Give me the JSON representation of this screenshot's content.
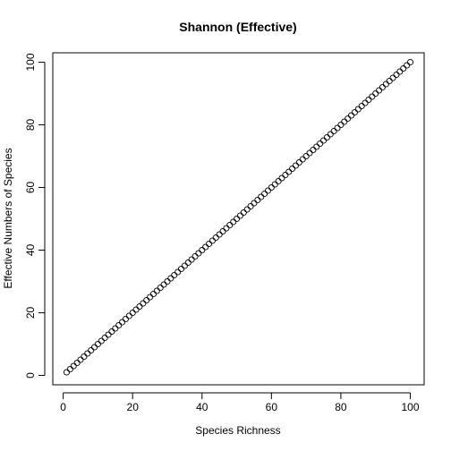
{
  "chart_data": {
    "type": "scatter",
    "title": "Shannon (Effective)",
    "xlabel": "Species Richness",
    "ylabel": "Effective Numbers of Species",
    "xlim": [
      -3,
      104
    ],
    "ylim": [
      -3,
      103
    ],
    "xticks": [
      0,
      20,
      40,
      60,
      80,
      100
    ],
    "yticks": [
      0,
      20,
      40,
      60,
      80,
      100
    ],
    "xtick_labels": [
      "0",
      "20",
      "40",
      "60",
      "80",
      "100"
    ],
    "ytick_labels": [
      "0",
      "20",
      "40",
      "60",
      "80",
      "100"
    ],
    "grid": false,
    "marker": "open-circle",
    "series": [
      {
        "name": "Shannon (Effective)",
        "x": [
          1,
          2,
          3,
          4,
          5,
          6,
          7,
          8,
          9,
          10,
          11,
          12,
          13,
          14,
          15,
          16,
          17,
          18,
          19,
          20,
          21,
          22,
          23,
          24,
          25,
          26,
          27,
          28,
          29,
          30,
          31,
          32,
          33,
          34,
          35,
          36,
          37,
          38,
          39,
          40,
          41,
          42,
          43,
          44,
          45,
          46,
          47,
          48,
          49,
          50,
          51,
          52,
          53,
          54,
          55,
          56,
          57,
          58,
          59,
          60,
          61,
          62,
          63,
          64,
          65,
          66,
          67,
          68,
          69,
          70,
          71,
          72,
          73,
          74,
          75,
          76,
          77,
          78,
          79,
          80,
          81,
          82,
          83,
          84,
          85,
          86,
          87,
          88,
          89,
          90,
          91,
          92,
          93,
          94,
          95,
          96,
          97,
          98,
          99,
          100
        ],
        "y": [
          1,
          2,
          3,
          4,
          5,
          6,
          7,
          8,
          9,
          10,
          11,
          12,
          13,
          14,
          15,
          16,
          17,
          18,
          19,
          20,
          21,
          22,
          23,
          24,
          25,
          26,
          27,
          28,
          29,
          30,
          31,
          32,
          33,
          34,
          35,
          36,
          37,
          38,
          39,
          40,
          41,
          42,
          43,
          44,
          45,
          46,
          47,
          48,
          49,
          50,
          51,
          52,
          53,
          54,
          55,
          56,
          57,
          58,
          59,
          60,
          61,
          62,
          63,
          64,
          65,
          66,
          67,
          68,
          69,
          70,
          71,
          72,
          73,
          74,
          75,
          76,
          77,
          78,
          79,
          80,
          81,
          82,
          83,
          84,
          85,
          86,
          87,
          88,
          89,
          90,
          91,
          92,
          93,
          94,
          95,
          96,
          97,
          98,
          99,
          100
        ]
      }
    ]
  }
}
